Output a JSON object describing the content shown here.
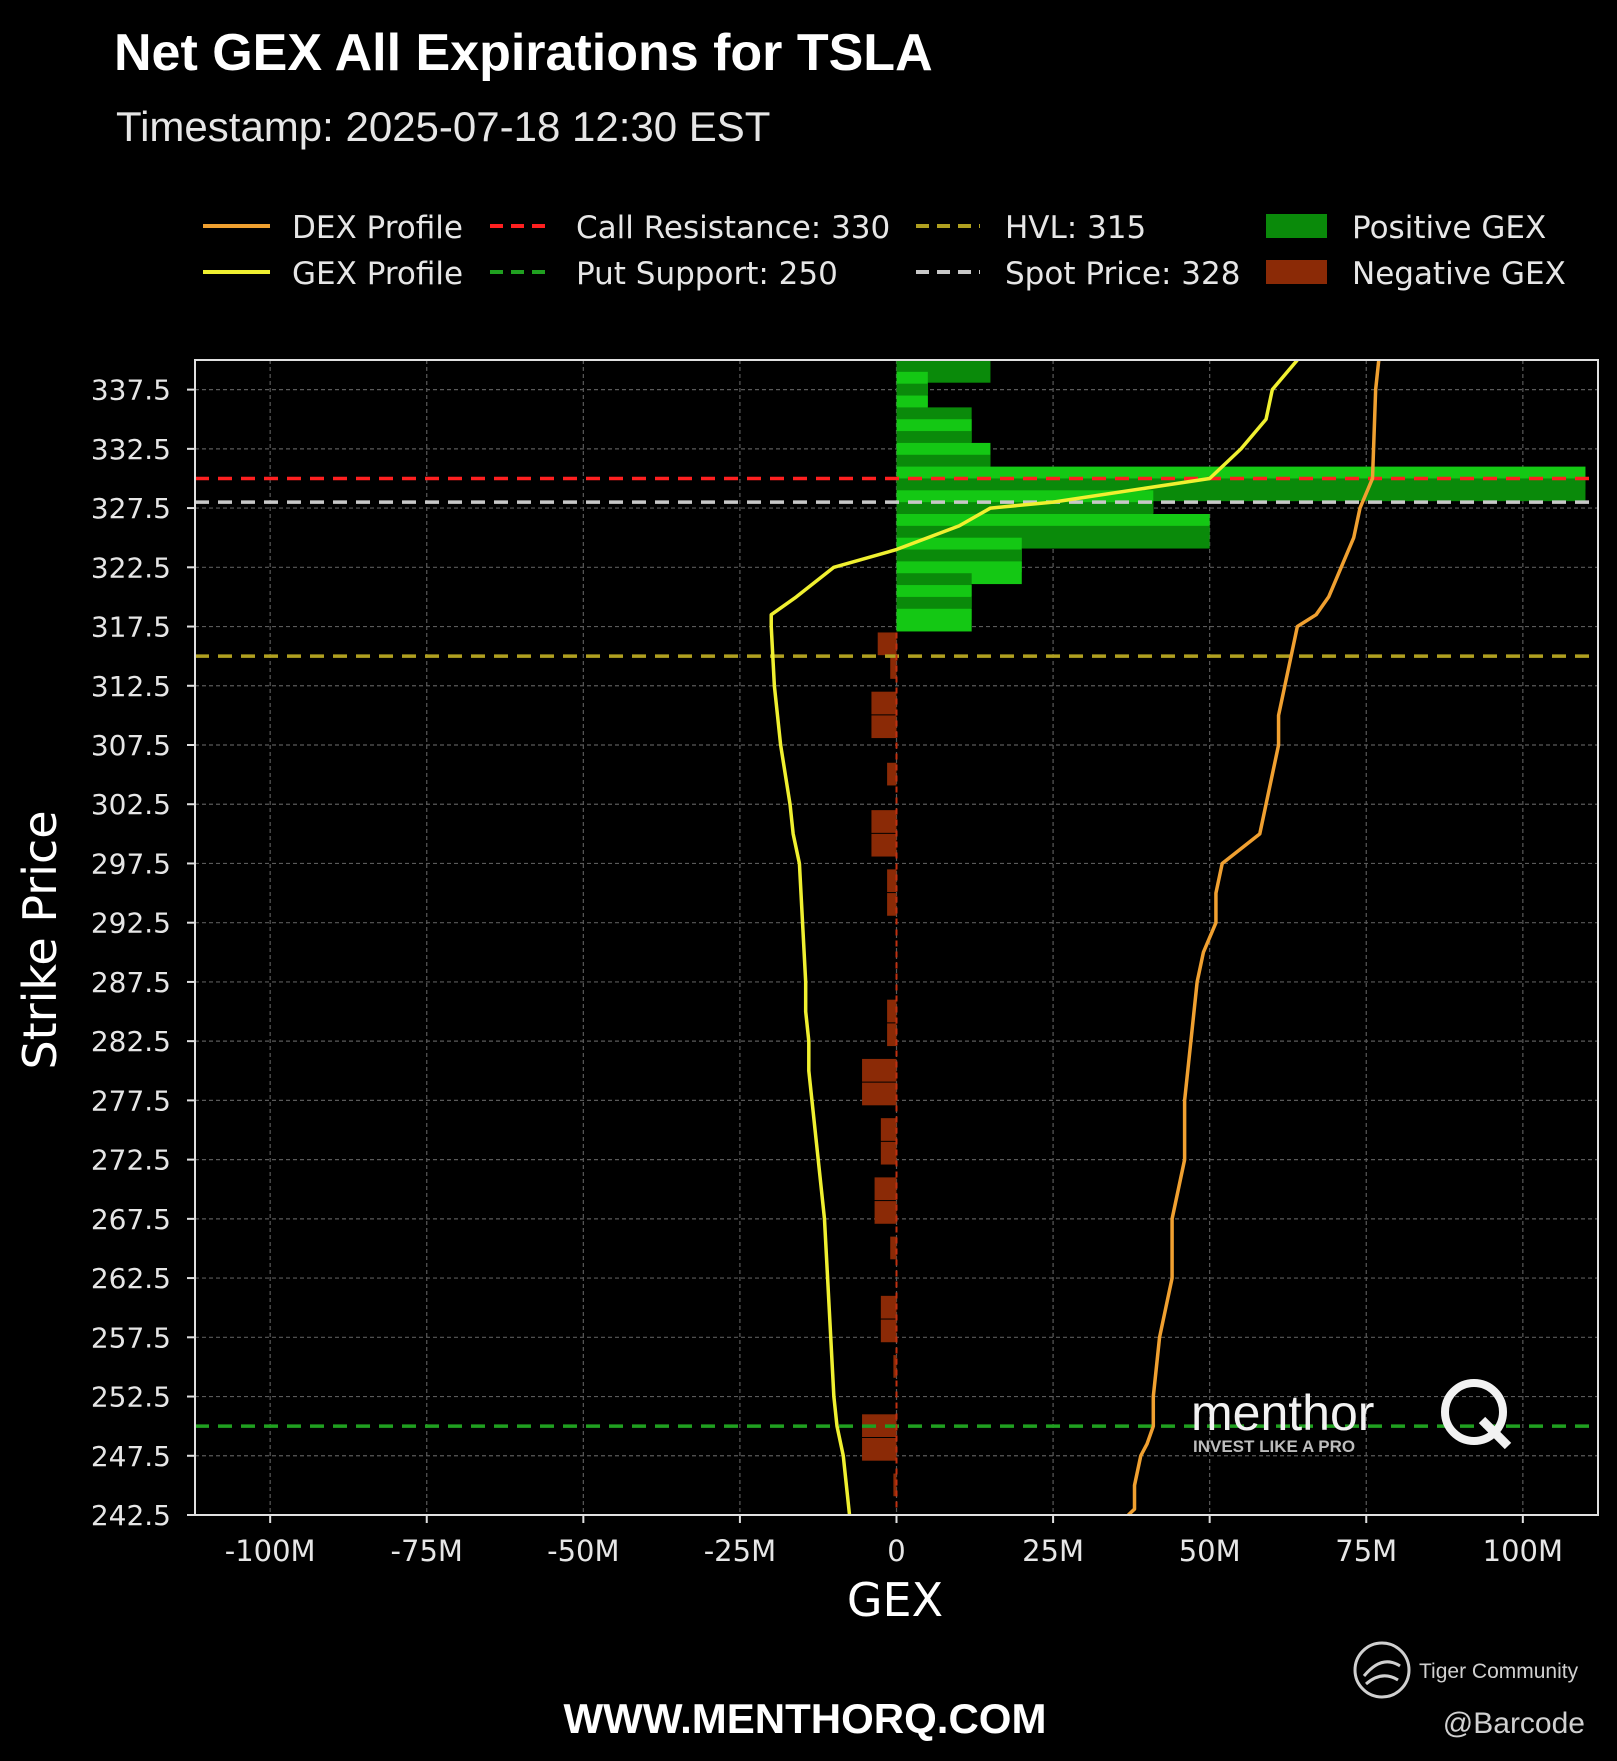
{
  "chart_data": {
    "type": "bar",
    "orientation": "horizontal",
    "title": "Net GEX All Expirations for TSLA",
    "subtitle": "Timestamp: 2025-07-18 12:30 EST",
    "xlabel": "GEX",
    "ylabel": "Strike Price",
    "xlim": [
      -112,
      112
    ],
    "ylim": [
      242.5,
      340
    ],
    "x_unit": "M",
    "x_ticks": [
      -100,
      -75,
      -50,
      -25,
      0,
      25,
      50,
      75,
      100
    ],
    "x_tick_labels": [
      "-100M",
      "-75M",
      "-50M",
      "-25M",
      "0",
      "25M",
      "50M",
      "75M",
      "100M"
    ],
    "y_ticks": [
      242.5,
      247.5,
      252.5,
      257.5,
      262.5,
      267.5,
      272.5,
      277.5,
      282.5,
      287.5,
      292.5,
      297.5,
      302.5,
      307.5,
      312.5,
      317.5,
      322.5,
      327.5,
      332.5,
      337.5
    ],
    "y_tick_labels": [
      "242.5",
      "247.5",
      "252.5",
      "257.5",
      "262.5",
      "267.5",
      "272.5",
      "277.5",
      "282.5",
      "287.5",
      "292.5",
      "297.5",
      "302.5",
      "307.5",
      "312.5",
      "317.5",
      "322.5",
      "327.5",
      "332.5",
      "337.5"
    ],
    "grid": true,
    "legend_position": "top",
    "legend": {
      "dex_profile": "DEX Profile",
      "gex_profile": "GEX Profile",
      "call_resistance": "Call Resistance: 330",
      "put_support": "Put Support: 250",
      "hvl": "HVL: 315",
      "spot_price": "Spot Price: 328",
      "positive_gex": "Positive GEX",
      "negative_gex": "Negative GEX"
    },
    "levels": {
      "call_resistance": 330,
      "put_support": 250,
      "hvl": 315,
      "spot_price": 328
    },
    "colors": {
      "positive_gex": "#0a8a0a",
      "positive_gex_light": "#14c814",
      "negative_gex": "#8b2a06",
      "dex_profile": "#f0a030",
      "gex_profile": "#f0f030",
      "call_resistance": "#ff2020",
      "put_support": "#20a020",
      "hvl": "#b0a020",
      "spot_price": "#c8c8c8",
      "grid": "#5a5a5a"
    },
    "series": [
      {
        "name": "Positive GEX",
        "bar_height": 2,
        "strikes": [
          339,
          338,
          337,
          336,
          335,
          334,
          333,
          332,
          331,
          330,
          329,
          328,
          327,
          326,
          325,
          324,
          323,
          322,
          321,
          320,
          319,
          318
        ],
        "values": [
          15,
          5,
          5,
          5,
          12,
          12,
          12,
          15,
          15,
          110,
          110,
          41,
          41,
          50,
          50,
          20,
          20,
          20,
          12,
          12,
          12,
          12
        ]
      },
      {
        "name": "Negative GEX",
        "bar_height": 2,
        "strikes": [
          316,
          314,
          311,
          309,
          305,
          301,
          299,
          296,
          294,
          285,
          283,
          280,
          278,
          275,
          273,
          270,
          268,
          265,
          260,
          258,
          255,
          250,
          248,
          245
        ],
        "values": [
          -3,
          -1,
          -4,
          -4,
          -1.5,
          -4,
          -4,
          -1.5,
          -1.5,
          -1.5,
          -1.5,
          -5.5,
          -5.5,
          -2.5,
          -2.5,
          -3.5,
          -3.5,
          -1,
          -2.5,
          -2.5,
          -0.5,
          -5.5,
          -5.5,
          -0.5
        ]
      },
      {
        "name": "DEX Profile",
        "x": [
          77,
          76.5,
          76,
          74,
          73,
          71,
          69,
          67,
          64,
          62,
          61,
          61,
          60,
          59,
          58,
          52,
          51,
          51,
          49,
          48,
          47,
          46,
          46,
          45,
          44,
          44,
          43,
          42,
          41,
          41,
          40,
          39,
          38,
          38,
          37
        ],
        "y": [
          340,
          337.5,
          330,
          327.5,
          325,
          322.5,
          320,
          318.5,
          317.5,
          312.5,
          310,
          307.5,
          305,
          302.5,
          300,
          297.5,
          295,
          292.5,
          290,
          287.5,
          282.5,
          277.5,
          272.5,
          270,
          267.5,
          262.5,
          260,
          257.5,
          252.5,
          250,
          248.5,
          247.5,
          245,
          243,
          242.5
        ]
      },
      {
        "name": "GEX Profile",
        "x": [
          64,
          60,
          59,
          55,
          50,
          25,
          15,
          10,
          0,
          -10,
          -16,
          -20,
          -20,
          -19.5,
          -18.5,
          -17,
          -16.5,
          -15.5,
          -15,
          -14.5,
          -14.5,
          -14,
          -14,
          -13.5,
          -12.5,
          -11.5,
          -11,
          -10.5,
          -10,
          -9.5,
          -8.5,
          -8,
          -7.5
        ],
        "y": [
          340,
          337.5,
          335,
          332.5,
          330,
          328,
          327.5,
          326,
          324,
          322.5,
          320,
          318.5,
          317.5,
          312.5,
          307.5,
          302.5,
          300,
          297.5,
          292.5,
          287.5,
          285,
          282.5,
          280,
          277.5,
          272.5,
          267.5,
          262.5,
          257.5,
          252.5,
          250,
          247.5,
          245,
          242.5
        ]
      }
    ]
  },
  "watermark": {
    "brand": "menthor",
    "tagline": "INVEST LIKE A PRO",
    "logo_letter": "Q"
  },
  "footer": {
    "website": "WWW.MENTHORQ.COM",
    "community": "Tiger Community",
    "handle": "@Barcode"
  }
}
